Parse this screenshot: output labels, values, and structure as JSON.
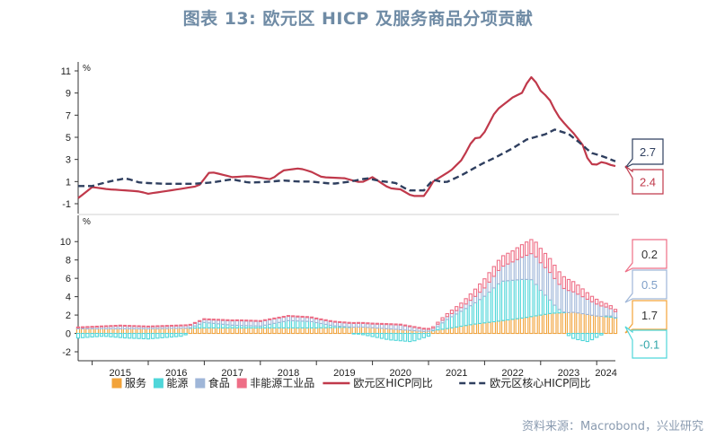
{
  "title": "图表 13: 欧元区 HICP 及服务商品分项贡献",
  "source": "资料来源：Macrobond，兴业研究",
  "colors": {
    "headline": "#c0394b",
    "core": "#2f3f5f",
    "services": "#f2a33a",
    "energy": "#4fd6d9",
    "food": "#9fb6d8",
    "industrial": "#ee6e86"
  },
  "chart_data": [
    {
      "type": "line",
      "unit": "%",
      "ylim": [
        -1,
        11
      ],
      "yticks": [
        -1,
        1,
        3,
        5,
        7,
        9,
        11
      ],
      "x_start": "2014-10",
      "x_end": "2024-05",
      "series": [
        {
          "name": "欧元区HICP同比",
          "style": "solid",
          "color": "#c0394b",
          "anchors": [
            [
              2014.75,
              -0.5
            ],
            [
              2015.0,
              0.5
            ],
            [
              2015.3,
              0.3
            ],
            [
              2015.6,
              0.2
            ],
            [
              2015.85,
              0.1
            ],
            [
              2016.0,
              -0.1
            ],
            [
              2016.4,
              0.2
            ],
            [
              2016.9,
              0.6
            ],
            [
              2017.1,
              1.9
            ],
            [
              2017.5,
              1.4
            ],
            [
              2017.8,
              1.5
            ],
            [
              2018.2,
              1.2
            ],
            [
              2018.4,
              2.0
            ],
            [
              2018.7,
              2.2
            ],
            [
              2018.9,
              1.9
            ],
            [
              2019.1,
              1.4
            ],
            [
              2019.5,
              1.3
            ],
            [
              2019.8,
              0.9
            ],
            [
              2020.0,
              1.4
            ],
            [
              2020.3,
              0.4
            ],
            [
              2020.5,
              0.3
            ],
            [
              2020.7,
              -0.3
            ],
            [
              2020.95,
              -0.3
            ],
            [
              2021.05,
              0.9
            ],
            [
              2021.4,
              2.0
            ],
            [
              2021.6,
              3.0
            ],
            [
              2021.8,
              4.9
            ],
            [
              2021.95,
              5.0
            ],
            [
              2022.2,
              7.4
            ],
            [
              2022.5,
              8.6
            ],
            [
              2022.7,
              9.1
            ],
            [
              2022.8,
              10.6
            ],
            [
              2022.9,
              10.1
            ],
            [
              2023.0,
              9.2
            ],
            [
              2023.15,
              8.5
            ],
            [
              2023.3,
              7.0
            ],
            [
              2023.45,
              6.1
            ],
            [
              2023.6,
              5.3
            ],
            [
              2023.75,
              4.3
            ],
            [
              2023.85,
              2.9
            ],
            [
              2023.95,
              2.4
            ],
            [
              2024.1,
              2.8
            ],
            [
              2024.3,
              2.4
            ],
            [
              2024.4,
              2.4
            ]
          ]
        },
        {
          "name": "欧元区核心HICP同比",
          "style": "dashed",
          "color": "#2f3f5f",
          "anchors": [
            [
              2014.75,
              0.6
            ],
            [
              2015.0,
              0.6
            ],
            [
              2015.3,
              1.0
            ],
            [
              2015.6,
              1.3
            ],
            [
              2015.85,
              0.9
            ],
            [
              2016.3,
              0.8
            ],
            [
              2016.8,
              0.8
            ],
            [
              2017.1,
              0.9
            ],
            [
              2017.5,
              1.2
            ],
            [
              2017.8,
              0.9
            ],
            [
              2018.2,
              1.0
            ],
            [
              2018.4,
              1.1
            ],
            [
              2018.7,
              1.0
            ],
            [
              2018.9,
              1.0
            ],
            [
              2019.3,
              0.8
            ],
            [
              2019.6,
              1.0
            ],
            [
              2019.9,
              1.3
            ],
            [
              2020.2,
              1.0
            ],
            [
              2020.4,
              0.9
            ],
            [
              2020.65,
              0.2
            ],
            [
              2020.95,
              0.2
            ],
            [
              2021.05,
              1.2
            ],
            [
              2021.3,
              0.9
            ],
            [
              2021.6,
              1.6
            ],
            [
              2021.95,
              2.6
            ],
            [
              2022.2,
              3.2
            ],
            [
              2022.5,
              4.0
            ],
            [
              2022.75,
              4.8
            ],
            [
              2023.1,
              5.3
            ],
            [
              2023.25,
              5.7
            ],
            [
              2023.5,
              5.3
            ],
            [
              2023.7,
              4.5
            ],
            [
              2023.9,
              3.6
            ],
            [
              2024.1,
              3.3
            ],
            [
              2024.4,
              2.7
            ]
          ]
        }
      ]
    },
    {
      "type": "bar",
      "stacked": true,
      "unit": "%",
      "ylim": [
        -2,
        11
      ],
      "yticks": [
        -2,
        0,
        2,
        4,
        6,
        8,
        10
      ],
      "x_start": "2014-10",
      "x_end": "2024-05",
      "series": [
        {
          "name": "服务",
          "color": "#f2a33a",
          "anchors": [
            [
              2014.75,
              0.5
            ],
            [
              2016.0,
              0.5
            ],
            [
              2017.0,
              0.6
            ],
            [
              2018.0,
              0.6
            ],
            [
              2019.0,
              0.6
            ],
            [
              2019.8,
              0.7
            ],
            [
              2020.3,
              0.5
            ],
            [
              2020.95,
              0.2
            ],
            [
              2021.3,
              0.5
            ],
            [
              2021.8,
              1.0
            ],
            [
              2022.2,
              1.3
            ],
            [
              2022.7,
              1.7
            ],
            [
              2023.2,
              2.2
            ],
            [
              2023.6,
              2.3
            ],
            [
              2024.0,
              1.9
            ],
            [
              2024.4,
              1.7
            ]
          ]
        },
        {
          "name": "能源",
          "color": "#4fd6d9",
          "anchors": [
            [
              2014.75,
              -0.5
            ],
            [
              2015.2,
              -0.3
            ],
            [
              2015.6,
              -0.5
            ],
            [
              2016.0,
              -0.6
            ],
            [
              2016.6,
              -0.3
            ],
            [
              2017.0,
              0.6
            ],
            [
              2017.5,
              0.3
            ],
            [
              2018.0,
              0.2
            ],
            [
              2018.5,
              0.8
            ],
            [
              2018.9,
              0.7
            ],
            [
              2019.3,
              0.2
            ],
            [
              2019.8,
              -0.1
            ],
            [
              2020.3,
              -0.7
            ],
            [
              2020.7,
              -0.9
            ],
            [
              2021.0,
              -0.3
            ],
            [
              2021.3,
              0.9
            ],
            [
              2021.8,
              2.2
            ],
            [
              2022.0,
              2.9
            ],
            [
              2022.3,
              4.3
            ],
            [
              2022.7,
              4.2
            ],
            [
              2022.85,
              4.0
            ],
            [
              2023.0,
              2.7
            ],
            [
              2023.3,
              0.5
            ],
            [
              2023.6,
              -0.6
            ],
            [
              2023.85,
              -0.9
            ],
            [
              2024.2,
              0.2
            ],
            [
              2024.4,
              -0.1
            ]
          ]
        },
        {
          "name": "食品",
          "color": "#9fb6d8",
          "anchors": [
            [
              2014.75,
              0.1
            ],
            [
              2015.5,
              0.3
            ],
            [
              2016.0,
              0.2
            ],
            [
              2017.0,
              0.3
            ],
            [
              2017.6,
              0.5
            ],
            [
              2018.0,
              0.5
            ],
            [
              2019.0,
              0.4
            ],
            [
              2020.0,
              0.4
            ],
            [
              2020.5,
              0.5
            ],
            [
              2021.0,
              0.2
            ],
            [
              2021.6,
              0.4
            ],
            [
              2022.0,
              0.9
            ],
            [
              2022.5,
              2.0
            ],
            [
              2022.9,
              3.0
            ],
            [
              2023.2,
              3.0
            ],
            [
              2023.6,
              2.2
            ],
            [
              2023.9,
              1.5
            ],
            [
              2024.4,
              0.5
            ]
          ]
        },
        {
          "name": "非能源工业品",
          "color": "#ee6e86",
          "anchors": [
            [
              2014.75,
              0.1
            ],
            [
              2016.0,
              0.1
            ],
            [
              2017.0,
              0.1
            ],
            [
              2018.0,
              0.1
            ],
            [
              2019.0,
              0.1
            ],
            [
              2020.0,
              0.1
            ],
            [
              2021.0,
              0.1
            ],
            [
              2021.6,
              0.5
            ],
            [
              2022.0,
              1.0
            ],
            [
              2022.5,
              1.2
            ],
            [
              2022.9,
              1.6
            ],
            [
              2023.2,
              1.5
            ],
            [
              2023.6,
              1.1
            ],
            [
              2023.9,
              0.6
            ],
            [
              2024.4,
              0.2
            ]
          ]
        }
      ]
    }
  ],
  "x_labels": [
    "2015",
    "2016",
    "2017",
    "2018",
    "2019",
    "2020",
    "2021",
    "2022",
    "2023",
    "2024"
  ],
  "legend": [
    {
      "label": "服务",
      "kind": "box",
      "color": "#f2a33a"
    },
    {
      "label": "能源",
      "kind": "box",
      "color": "#4fd6d9"
    },
    {
      "label": "食品",
      "kind": "box",
      "color": "#9fb6d8"
    },
    {
      "label": "非能源工业品",
      "kind": "box",
      "color": "#ee6e86"
    },
    {
      "label": "欧元区HICP同比",
      "kind": "solid",
      "color": "#c0394b"
    },
    {
      "label": "欧元区核心HICP同比",
      "kind": "dashed",
      "color": "#2f3f5f"
    }
  ],
  "callouts_top": [
    {
      "value": "2.7",
      "data_value": 2.7,
      "border": "#2f3f5f",
      "text_color": "#2f3f5f"
    },
    {
      "value": "2.4",
      "data_value": 2.4,
      "border": "#c0394b",
      "text_color": "#c0394b"
    }
  ],
  "callouts_bottom": [
    {
      "value": "0.2",
      "series": "非能源工业品",
      "border": "#ee6e86",
      "text_color": "#333333"
    },
    {
      "value": "0.5",
      "series": "食品",
      "border": "#9fb6d8",
      "text_color": "#7f9fc8"
    },
    {
      "value": "1.7",
      "series": "服务",
      "border": "#f2a33a",
      "text_color": "#333333"
    },
    {
      "value": "-0.1",
      "series": "能源",
      "border": "#4fd6d9",
      "text_color": "#2fa6a9"
    }
  ]
}
